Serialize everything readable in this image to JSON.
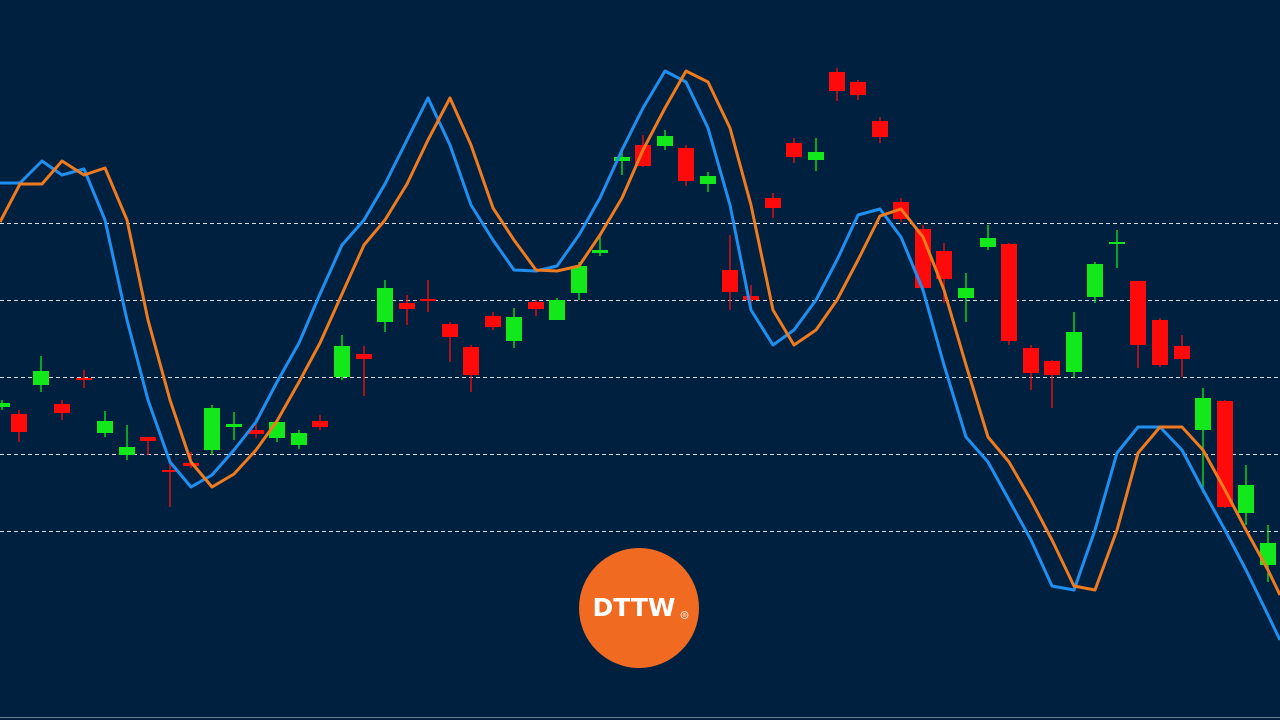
{
  "chart_data": {
    "type": "candlestick",
    "xlim": [
      0,
      1280
    ],
    "ylim": [
      0,
      720
    ],
    "yticks": [
      497,
      420,
      343,
      266,
      189
    ],
    "grid": true,
    "up_color": "#12e81a",
    "down_color": "#ff0a0a",
    "candles": {
      "x": [
        2,
        19,
        41,
        62,
        84,
        105,
        127,
        148,
        170,
        191,
        212,
        234,
        256,
        277,
        299,
        320,
        342,
        364,
        385,
        407,
        428,
        450,
        471,
        493,
        514,
        536,
        557,
        579,
        600,
        622,
        643,
        665,
        686,
        708,
        730,
        751,
        773,
        794,
        816,
        837,
        858,
        880,
        901,
        923,
        944,
        966,
        988,
        1009,
        1031,
        1052,
        1074,
        1095,
        1117,
        1138,
        1160,
        1182,
        1203,
        1225,
        1246,
        1268
      ],
      "open": [
        313,
        306,
        335,
        316,
        342,
        287,
        265,
        283,
        250,
        257,
        270,
        293,
        290,
        282,
        275,
        299,
        343,
        366,
        398,
        417,
        421,
        396,
        373,
        404,
        379,
        418,
        400,
        427,
        467,
        559,
        575,
        574,
        572,
        536,
        450,
        424,
        522,
        577,
        560,
        648,
        638,
        599,
        518,
        491,
        469,
        422,
        473,
        476,
        372,
        359,
        348,
        423,
        476,
        439,
        400,
        374,
        290,
        319,
        207,
        155
      ],
      "high": [
        320,
        310,
        364,
        320,
        350,
        309,
        295,
        283,
        262,
        268,
        315,
        308,
        302,
        300,
        290,
        305,
        385,
        374,
        440,
        425,
        440,
        398,
        375,
        408,
        412,
        420,
        422,
        458,
        486,
        570,
        585,
        590,
        575,
        548,
        485,
        435,
        527,
        582,
        582,
        652,
        640,
        603,
        522,
        495,
        477,
        447,
        495,
        477,
        375,
        360,
        408,
        458,
        490,
        439,
        402,
        385,
        332,
        320,
        255,
        195
      ],
      "low": [
        310,
        278,
        328,
        300,
        332,
        283,
        260,
        265,
        213,
        252,
        265,
        280,
        282,
        278,
        271,
        290,
        340,
        324,
        388,
        395,
        408,
        358,
        328,
        390,
        372,
        404,
        400,
        420,
        464,
        545,
        553,
        570,
        534,
        528,
        410,
        415,
        502,
        557,
        549,
        619,
        620,
        577,
        498,
        428,
        417,
        398,
        470,
        375,
        330,
        312,
        342,
        417,
        452,
        352,
        353,
        343,
        227,
        212,
        195,
        138
      ],
      "close": [
        317,
        288,
        349,
        307,
        340,
        299,
        273,
        279,
        248,
        254,
        312,
        296,
        286,
        298,
        287,
        293,
        374,
        361,
        432,
        411,
        419,
        383,
        345,
        393,
        403,
        411,
        420,
        454,
        470,
        563,
        554,
        584,
        539,
        544,
        428,
        420,
        512,
        563,
        568,
        629,
        625,
        583,
        501,
        432,
        441,
        432,
        482,
        379,
        347,
        345,
        388,
        456,
        478,
        375,
        355,
        361,
        322,
        213,
        235,
        177
      ]
    },
    "series": [
      {
        "color": "#1f8ff0",
        "x": [
          0,
          20,
          42,
          62,
          84,
          105,
          127,
          148,
          170,
          191,
          212,
          234,
          256,
          277,
          299,
          320,
          342,
          364,
          385,
          407,
          428,
          450,
          471,
          493,
          514,
          536,
          557,
          579,
          600,
          622,
          643,
          665,
          686,
          708,
          730,
          751,
          773,
          794,
          816,
          837,
          858,
          880,
          901,
          923,
          944,
          966,
          988,
          1009,
          1031,
          1052,
          1074,
          1095,
          1117,
          1138,
          1160,
          1182,
          1203,
          1225,
          1246,
          1268,
          1280
        ],
        "values": [
          537,
          537,
          559,
          545,
          551,
          500,
          400,
          320,
          258,
          233,
          245,
          270,
          298,
          338,
          377,
          426,
          475,
          500,
          536,
          580,
          622,
          575,
          515,
          480,
          450,
          449,
          454,
          485,
          522,
          570,
          612,
          649,
          638,
          592,
          515,
          410,
          375,
          390,
          420,
          460,
          505,
          511,
          483,
          430,
          355,
          283,
          258,
          220,
          180,
          134,
          130,
          190,
          267,
          293,
          293,
          270,
          230,
          190,
          150,
          105,
          80
        ]
      },
      {
        "color": "#f07a1e",
        "x": [
          0,
          20,
          42,
          62,
          84,
          105,
          127,
          148,
          170,
          191,
          212,
          234,
          256,
          277,
          299,
          320,
          342,
          364,
          385,
          407,
          428,
          450,
          471,
          493,
          514,
          536,
          557,
          579,
          600,
          622,
          643,
          665,
          686,
          708,
          730,
          751,
          773,
          794,
          816,
          837,
          858,
          880,
          901,
          923,
          944,
          966,
          988,
          1009,
          1031,
          1052,
          1074,
          1095,
          1117,
          1138,
          1160,
          1182,
          1203,
          1225,
          1246,
          1268,
          1280
        ],
        "values": [
          498,
          536,
          536,
          559,
          545,
          552,
          500,
          400,
          320,
          258,
          233,
          246,
          270,
          299,
          338,
          377,
          426,
          475,
          500,
          536,
          580,
          622,
          575,
          512,
          480,
          450,
          449,
          454,
          485,
          522,
          570,
          612,
          649,
          638,
          592,
          515,
          410,
          375,
          390,
          420,
          460,
          504,
          511,
          483,
          430,
          355,
          283,
          258,
          220,
          180,
          134,
          130,
          190,
          267,
          293,
          293,
          270,
          230,
          190,
          150,
          125
        ]
      }
    ]
  },
  "logo": {
    "text": "DTTW",
    "mark": "®"
  }
}
